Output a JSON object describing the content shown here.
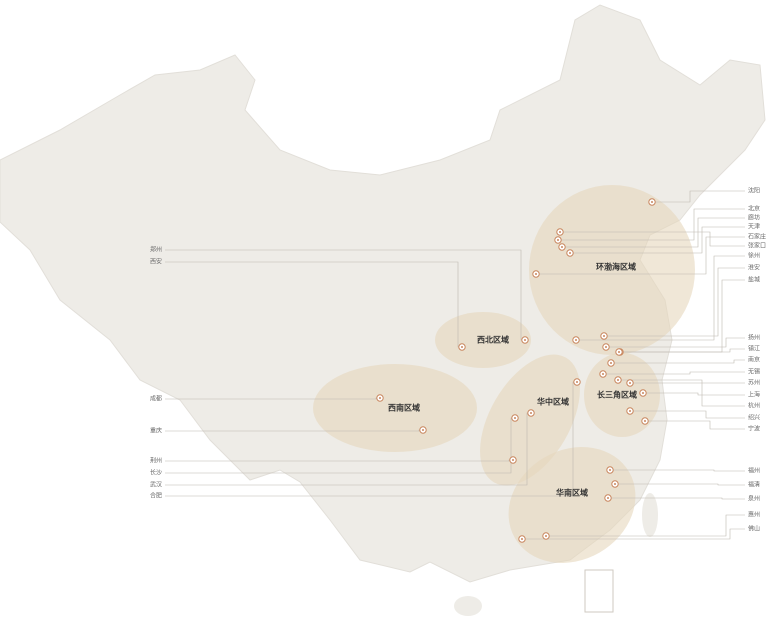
{
  "regions": [
    {
      "label": "环渤海区域"
    },
    {
      "label": "西北区域"
    },
    {
      "label": "西南区域"
    },
    {
      "label": "华中区域"
    },
    {
      "label": "长三角区域"
    },
    {
      "label": "华南区域"
    }
  ],
  "cities_left": [
    {
      "label": "郑州"
    },
    {
      "label": "西安"
    },
    {
      "label": "成都"
    },
    {
      "label": "重庆"
    },
    {
      "label": "荆州"
    },
    {
      "label": "长沙"
    },
    {
      "label": "武汉"
    },
    {
      "label": "合肥"
    }
  ],
  "cities_right": [
    {
      "label": "沈阳"
    },
    {
      "label": "北京"
    },
    {
      "label": "廊坊"
    },
    {
      "label": "天津"
    },
    {
      "label": "石家庄"
    },
    {
      "label": "张家口"
    },
    {
      "label": "徐州"
    },
    {
      "label": "淮安"
    },
    {
      "label": "盐城"
    },
    {
      "label": "扬州"
    },
    {
      "label": "镇江"
    },
    {
      "label": "南京"
    },
    {
      "label": "无锡"
    },
    {
      "label": "苏州"
    },
    {
      "label": "上海"
    },
    {
      "label": "杭州"
    },
    {
      "label": "绍兴"
    },
    {
      "label": "宁波"
    },
    {
      "label": "福州"
    },
    {
      "label": "福清"
    },
    {
      "label": "泉州"
    },
    {
      "label": "惠州"
    },
    {
      "label": "佛山"
    }
  ]
}
